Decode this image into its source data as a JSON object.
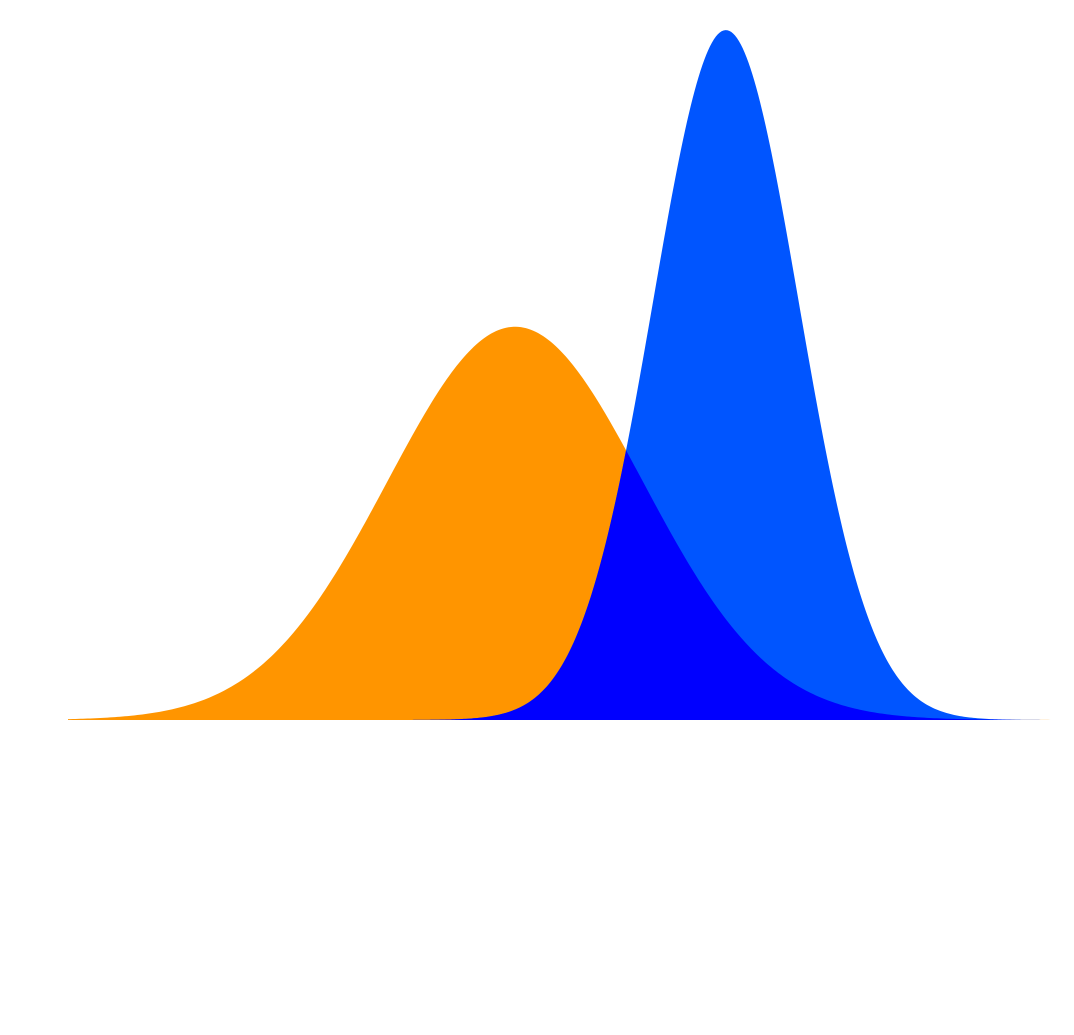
{
  "chart_data": {
    "type": "area",
    "title": "",
    "xlabel": "",
    "ylabel": "",
    "grid": false,
    "legend": "none",
    "xlim": [
      -3.5,
      4.25
    ],
    "ylim": [
      0,
      0.7
    ],
    "series": [
      {
        "distribution": "normal",
        "mean": 0,
        "sd": 1,
        "color": "#ff9500"
      },
      {
        "distribution": "normal",
        "mean": 1.65,
        "sd": 0.57,
        "color": "#0055ff"
      }
    ],
    "overlap_color": "#0000ff"
  }
}
